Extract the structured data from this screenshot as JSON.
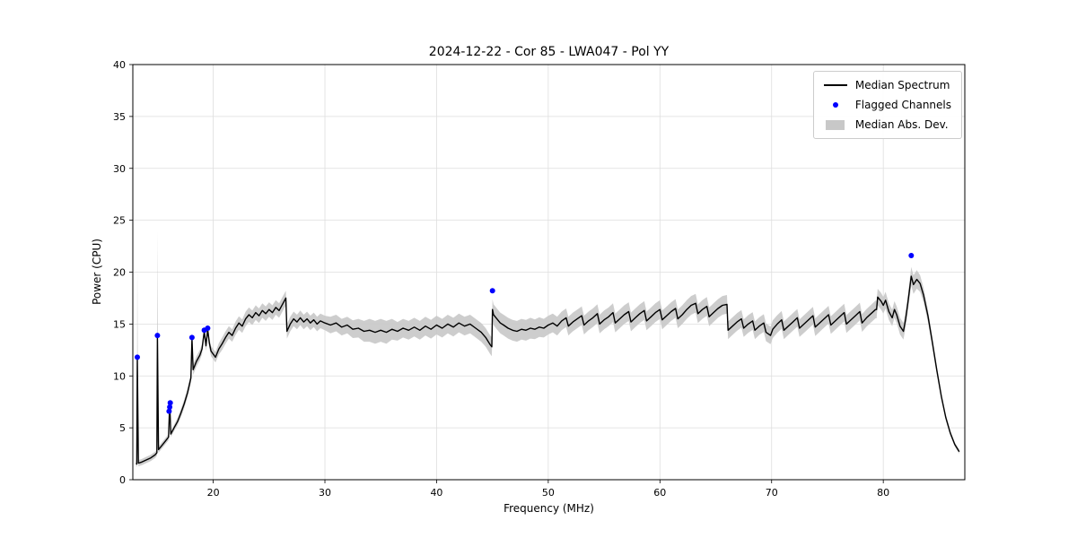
{
  "chart_data": {
    "type": "line",
    "title": "2024-12-22 - Cor 85 - LWA047 - Pol YY",
    "xlabel": "Frequency (MHz)",
    "ylabel": "Power (CPU)",
    "xlim": [
      12.8,
      87.3
    ],
    "ylim": [
      0,
      40
    ],
    "x_ticks": [
      20,
      30,
      40,
      50,
      60,
      70,
      80
    ],
    "y_ticks": [
      0,
      5,
      10,
      15,
      20,
      25,
      30,
      35,
      40
    ],
    "grid": true,
    "legend_position": "upper right",
    "colors": {
      "line": "#000000",
      "flagged": "#0000ff",
      "band": "#c8c8c8",
      "grid": "#dedede",
      "spine": "#000000"
    },
    "legend": [
      {
        "label": "Median Spectrum",
        "type": "line"
      },
      {
        "label": "Flagged Channels",
        "type": "dot"
      },
      {
        "label": "Median Abs. Dev.",
        "type": "band"
      }
    ],
    "series": {
      "x": [
        13.1,
        13.15,
        13.2,
        13.3,
        13.6,
        14,
        14.4,
        14.8,
        14.95,
        15,
        15.1,
        15.4,
        15.7,
        16,
        16.1,
        16.2,
        16.5,
        16.8,
        17.1,
        17.4,
        17.7,
        18,
        18.1,
        18.2,
        18.5,
        18.8,
        19,
        19.2,
        19.35,
        19.5,
        19.65,
        19.8,
        20,
        20.2,
        20.5,
        20.8,
        21.1,
        21.4,
        21.7,
        22,
        22.3,
        22.6,
        22.9,
        23.2,
        23.5,
        23.8,
        24.1,
        24.4,
        24.7,
        25,
        25.3,
        25.6,
        25.9,
        26.2,
        26.5,
        26.6,
        26.9,
        27.2,
        27.5,
        27.8,
        28.1,
        28.4,
        28.7,
        29,
        29.3,
        29.6,
        30,
        30.5,
        31,
        31.5,
        32,
        32.5,
        33,
        33.5,
        34,
        34.5,
        35,
        35.5,
        36,
        36.5,
        37,
        37.5,
        38,
        38.5,
        39,
        39.5,
        40,
        40.5,
        41,
        41.5,
        42,
        42.5,
        43,
        43.5,
        44,
        44.4,
        44.8,
        44.95,
        45,
        45.1,
        45.4,
        45.7,
        46,
        46.4,
        46.8,
        47.2,
        47.6,
        48,
        48.4,
        48.8,
        49.2,
        49.6,
        50,
        50.4,
        50.8,
        51.2,
        51.6,
        51.8,
        52.2,
        52.6,
        53,
        53.2,
        53.6,
        54,
        54.4,
        54.6,
        55,
        55.4,
        55.8,
        56,
        56.4,
        56.8,
        57.2,
        57.4,
        57.8,
        58.2,
        58.6,
        58.8,
        59.2,
        59.6,
        60,
        60.2,
        60.6,
        61,
        61.4,
        61.6,
        62,
        62.4,
        62.8,
        63.2,
        63.4,
        63.8,
        64.2,
        64.4,
        64.8,
        65.2,
        65.6,
        66,
        66.1,
        66.5,
        66.9,
        67.3,
        67.5,
        67.9,
        68.3,
        68.5,
        68.9,
        69.3,
        69.5,
        69.9,
        70.1,
        70.5,
        70.9,
        71.1,
        71.5,
        71.9,
        72.3,
        72.5,
        72.9,
        73.3,
        73.7,
        73.9,
        74.3,
        74.7,
        75.1,
        75.3,
        75.7,
        76.1,
        76.5,
        76.7,
        77.1,
        77.5,
        77.9,
        78.1,
        78.5,
        78.9,
        79.3,
        79.4,
        79.5,
        79.8,
        80,
        80.2,
        80.5,
        80.8,
        81,
        81.2,
        81.5,
        81.8,
        82,
        82.2,
        82.5,
        82.7,
        83,
        83.3,
        83.6,
        84,
        84.4,
        84.8,
        85.2,
        85.6,
        86,
        86.4,
        86.8
      ],
      "median": [
        1.6,
        1.5,
        11.7,
        1.6,
        1.7,
        1.9,
        2.1,
        2.4,
        2.6,
        13.9,
        2.9,
        3.3,
        3.7,
        4.1,
        7.4,
        4.4,
        5,
        5.6,
        6.4,
        7.3,
        8.4,
        9.8,
        13.6,
        10.6,
        11.4,
        12,
        12.6,
        14.3,
        12.9,
        14.5,
        13.2,
        12.4,
        12.1,
        11.8,
        12.6,
        13.1,
        13.7,
        14.2,
        13.9,
        14.6,
        15.1,
        14.8,
        15.5,
        15.9,
        15.6,
        16.1,
        15.8,
        16.3,
        16,
        16.4,
        16.1,
        16.6,
        16.3,
        16.9,
        17.5,
        14.3,
        15,
        15.5,
        15.2,
        15.6,
        15.2,
        15.5,
        15.1,
        15.4,
        15,
        15.3,
        15.1,
        14.9,
        15.1,
        14.7,
        14.9,
        14.5,
        14.6,
        14.3,
        14.4,
        14.2,
        14.4,
        14.2,
        14.5,
        14.3,
        14.6,
        14.4,
        14.7,
        14.4,
        14.8,
        14.5,
        14.9,
        14.6,
        15,
        14.7,
        15.1,
        14.8,
        15,
        14.6,
        14.2,
        13.7,
        13,
        12.8,
        16.4,
        15.9,
        15.5,
        15.1,
        14.9,
        14.6,
        14.4,
        14.3,
        14.5,
        14.4,
        14.6,
        14.5,
        14.7,
        14.6,
        14.9,
        15.1,
        14.8,
        15.3,
        15.6,
        14.8,
        15.2,
        15.5,
        15.8,
        14.9,
        15.3,
        15.6,
        16,
        15,
        15.4,
        15.7,
        16.1,
        15.1,
        15.5,
        15.9,
        16.2,
        15.2,
        15.6,
        16,
        16.3,
        15.3,
        15.7,
        16.1,
        16.4,
        15.4,
        15.8,
        16.2,
        16.5,
        15.5,
        15.9,
        16.4,
        16.8,
        17,
        16,
        16.4,
        16.7,
        15.7,
        16.1,
        16.5,
        16.8,
        16.9,
        14.4,
        14.8,
        15.2,
        15.5,
        14.6,
        15,
        15.3,
        14.4,
        14.8,
        15.1,
        14.2,
        13.9,
        14.5,
        15,
        15.4,
        14.4,
        14.8,
        15.2,
        15.6,
        14.6,
        15,
        15.4,
        15.8,
        14.7,
        15.1,
        15.5,
        15.9,
        14.9,
        15.3,
        15.7,
        16.1,
        15,
        15.4,
        15.8,
        16.2,
        15.1,
        15.6,
        16,
        16.4,
        16.4,
        17.6,
        17.2,
        16.8,
        17.3,
        16.2,
        15.6,
        16.4,
        15.9,
        14.8,
        14.3,
        15.5,
        17,
        19.6,
        18.8,
        19.3,
        18.9,
        17.8,
        15.8,
        13.2,
        10.5,
        8,
        6,
        4.5,
        3.4,
        2.7
      ],
      "mad": [
        0.3,
        0.3,
        8.8,
        0.3,
        0.3,
        0.3,
        0.3,
        0.3,
        0.3,
        10,
        0.3,
        0.3,
        0.3,
        0.3,
        0.4,
        0.3,
        0.3,
        0.35,
        0.4,
        0.4,
        0.45,
        0.5,
        0.5,
        0.5,
        0.5,
        0.5,
        0.5,
        0.5,
        0.5,
        0.5,
        0.5,
        0.5,
        0.5,
        0.5,
        0.55,
        0.6,
        0.6,
        0.6,
        0.6,
        0.65,
        0.65,
        0.65,
        0.7,
        0.7,
        0.7,
        0.7,
        0.7,
        0.7,
        0.7,
        0.7,
        0.7,
        0.7,
        0.7,
        0.7,
        0.7,
        0.7,
        0.7,
        0.7,
        0.7,
        0.7,
        0.7,
        0.7,
        0.7,
        0.7,
        0.7,
        0.7,
        0.7,
        0.8,
        0.8,
        0.8,
        0.8,
        0.85,
        0.9,
        1,
        1.1,
        1.1,
        1.1,
        1.1,
        1,
        0.9,
        0.9,
        0.9,
        0.9,
        0.9,
        0.9,
        0.9,
        0.9,
        0.9,
        0.9,
        0.9,
        0.9,
        0.9,
        0.9,
        0.9,
        0.9,
        0.9,
        0.9,
        0.9,
        1,
        1,
        1,
        1,
        1,
        1,
        1,
        1,
        1,
        1,
        1,
        0.95,
        0.95,
        0.9,
        0.9,
        0.9,
        0.9,
        0.9,
        0.9,
        0.9,
        0.9,
        0.9,
        0.9,
        0.9,
        0.9,
        0.9,
        0.9,
        0.9,
        0.9,
        0.9,
        0.9,
        0.9,
        0.9,
        0.9,
        0.9,
        0.9,
        0.9,
        0.9,
        0.9,
        0.9,
        0.9,
        0.9,
        0.9,
        0.9,
        0.9,
        0.9,
        0.9,
        0.9,
        0.9,
        0.9,
        0.9,
        0.9,
        0.9,
        0.9,
        0.9,
        0.9,
        0.9,
        0.9,
        0.9,
        0.9,
        0.85,
        0.85,
        0.85,
        0.85,
        0.85,
        0.85,
        0.85,
        0.85,
        0.85,
        0.85,
        0.85,
        0.85,
        0.85,
        0.85,
        0.85,
        0.85,
        0.85,
        0.85,
        0.85,
        0.85,
        0.85,
        0.85,
        0.85,
        0.85,
        0.85,
        0.85,
        0.85,
        0.85,
        0.85,
        0.85,
        0.85,
        0.85,
        0.85,
        0.85,
        0.85,
        0.85,
        0.85,
        0.85,
        0.85,
        0.85,
        0.8,
        0.8,
        0.8,
        0.8,
        0.8,
        0.8,
        0.8,
        0.8,
        0.8,
        0.8,
        0.8,
        0.8,
        0.9,
        0.9,
        0.9,
        0.8,
        0.7,
        0.6,
        0.5,
        0.4,
        0.35,
        0.3,
        0.25,
        0.2,
        0.2
      ]
    },
    "flagged": [
      {
        "x": 13.2,
        "y": 11.8
      },
      {
        "x": 15.0,
        "y": 13.9
      },
      {
        "x": 16.05,
        "y": 6.6
      },
      {
        "x": 16.1,
        "y": 7.0
      },
      {
        "x": 16.15,
        "y": 7.4
      },
      {
        "x": 18.1,
        "y": 13.7
      },
      {
        "x": 19.2,
        "y": 14.4
      },
      {
        "x": 19.5,
        "y": 14.6
      },
      {
        "x": 45.0,
        "y": 18.2
      },
      {
        "x": 82.5,
        "y": 21.6
      }
    ]
  }
}
